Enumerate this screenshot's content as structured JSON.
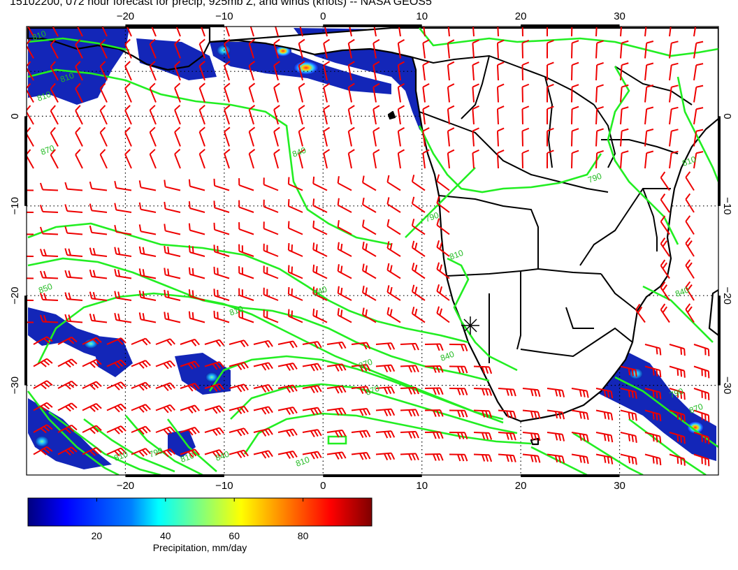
{
  "title": "15102200, 072 hour forecast for precip, 925mb Z, and winds (knots) -- NASA GEOS5",
  "map": {
    "projection": "cylindrical",
    "lon_range": [
      -30,
      40
    ],
    "lat_range": [
      -40,
      10
    ],
    "graticule_interval_deg": 10,
    "graticule_style": "dotted",
    "frame_alternating_segments": true,
    "layers": [
      "precipitation",
      "925mb geopotential height contours",
      "wind barbs",
      "coastlines",
      "country borders"
    ],
    "colors": {
      "coastline": "#000000",
      "contour": "#22ee22",
      "barb": "#ee0000",
      "land": "#ffffff",
      "ocean": "#ffffff"
    },
    "marker": "star-at-walvis-bay"
  },
  "axes": {
    "top_lon_ticks": [
      "−20",
      "−10",
      "0",
      "10",
      "20",
      "30"
    ],
    "bottom_lon_ticks": [
      "−20",
      "−10",
      "0",
      "10",
      "20",
      "30"
    ],
    "left_lat_ticks": [
      "0",
      "−10",
      "−20",
      "−30"
    ],
    "right_lat_ticks": [
      "0",
      "−10",
      "−20",
      "−30"
    ]
  },
  "contour_labels": [
    "810",
    "810",
    "810",
    "870",
    "840",
    "790",
    "810",
    "840",
    "810",
    "850",
    "870",
    "840",
    "870",
    "810",
    "790",
    "810",
    "840",
    "810",
    "790",
    "870",
    "840",
    "810",
    "790"
  ],
  "colorbar": {
    "label": "Precipitation, mm/day",
    "ticks": [
      "20",
      "40",
      "60",
      "80"
    ],
    "tick_values": [
      20,
      40,
      60,
      80
    ],
    "range": [
      0,
      100
    ],
    "colormap": [
      "#00007f",
      "#0000ff",
      "#007fff",
      "#00ffff",
      "#7fff7f",
      "#ffff00",
      "#ff7f00",
      "#ff0000",
      "#7f0000"
    ]
  }
}
